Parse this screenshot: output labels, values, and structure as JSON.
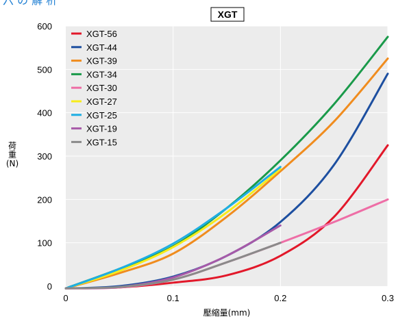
{
  "header": {
    "top_text": "六 の 解 析"
  },
  "chart_data": {
    "type": "line",
    "title": "XGT",
    "xlabel": "壓縮量(mm)",
    "ylabel_chars": [
      "荷",
      "重",
      "(N)"
    ],
    "xlim": [
      0,
      0.3
    ],
    "ylim": [
      0,
      600
    ],
    "x_ticks": [
      0,
      0.1,
      0.2,
      0.3
    ],
    "x_tick_labels": [
      "0",
      "0.1",
      "0.2",
      "0.3"
    ],
    "y_ticks": [
      0,
      100,
      200,
      300,
      400,
      500,
      600
    ],
    "y_tick_labels": [
      "0",
      "100",
      "200",
      "300",
      "400",
      "500",
      "600"
    ],
    "grid": true,
    "legend_position": "top-left",
    "series": [
      {
        "name": "XGT-56",
        "color": "#e2182a",
        "x": [
          0,
          0.05,
          0.1,
          0.15,
          0.2,
          0.25,
          0.3
        ],
        "y": [
          -5,
          -3,
          8,
          25,
          70,
          160,
          325
        ]
      },
      {
        "name": "XGT-44",
        "color": "#1d4fa0",
        "x": [
          0,
          0.05,
          0.1,
          0.15,
          0.2,
          0.25,
          0.3
        ],
        "y": [
          -5,
          0,
          22,
          70,
          148,
          280,
          490
        ]
      },
      {
        "name": "XGT-39",
        "color": "#f08c1e",
        "x": [
          0,
          0.05,
          0.1,
          0.15,
          0.2,
          0.25,
          0.3
        ],
        "y": [
          -5,
          30,
          75,
          160,
          265,
          380,
          525
        ]
      },
      {
        "name": "XGT-34",
        "color": "#1a9a4a",
        "x": [
          0,
          0.05,
          0.1,
          0.15,
          0.2,
          0.25,
          0.3
        ],
        "y": [
          -5,
          40,
          92,
          180,
          290,
          420,
          575
        ]
      },
      {
        "name": "XGT-30",
        "color": "#ee6ea6",
        "x": [
          0,
          0.05,
          0.1,
          0.15,
          0.2,
          0.25,
          0.3
        ],
        "y": [
          -5,
          -3,
          15,
          55,
          100,
          148,
          200
        ]
      },
      {
        "name": "XGT-27",
        "color": "#f7ec1a",
        "x": [
          0,
          0.05,
          0.1,
          0.15,
          0.2
        ],
        "y": [
          -5,
          35,
          90,
          170,
          270
        ]
      },
      {
        "name": "XGT-25",
        "color": "#1faee3",
        "x": [
          0,
          0.05,
          0.1,
          0.15,
          0.2
        ],
        "y": [
          -5,
          40,
          98,
          180,
          275
        ]
      },
      {
        "name": "XGT-19",
        "color": "#a75aa8",
        "x": [
          0,
          0.05,
          0.1,
          0.15,
          0.2
        ],
        "y": [
          -5,
          -2,
          20,
          70,
          140
        ]
      },
      {
        "name": "XGT-15",
        "color": "#8a8a8a",
        "x": [
          0,
          0.05,
          0.1,
          0.15,
          0.2
        ],
        "y": [
          -5,
          -2,
          15,
          55,
          100
        ]
      }
    ]
  }
}
